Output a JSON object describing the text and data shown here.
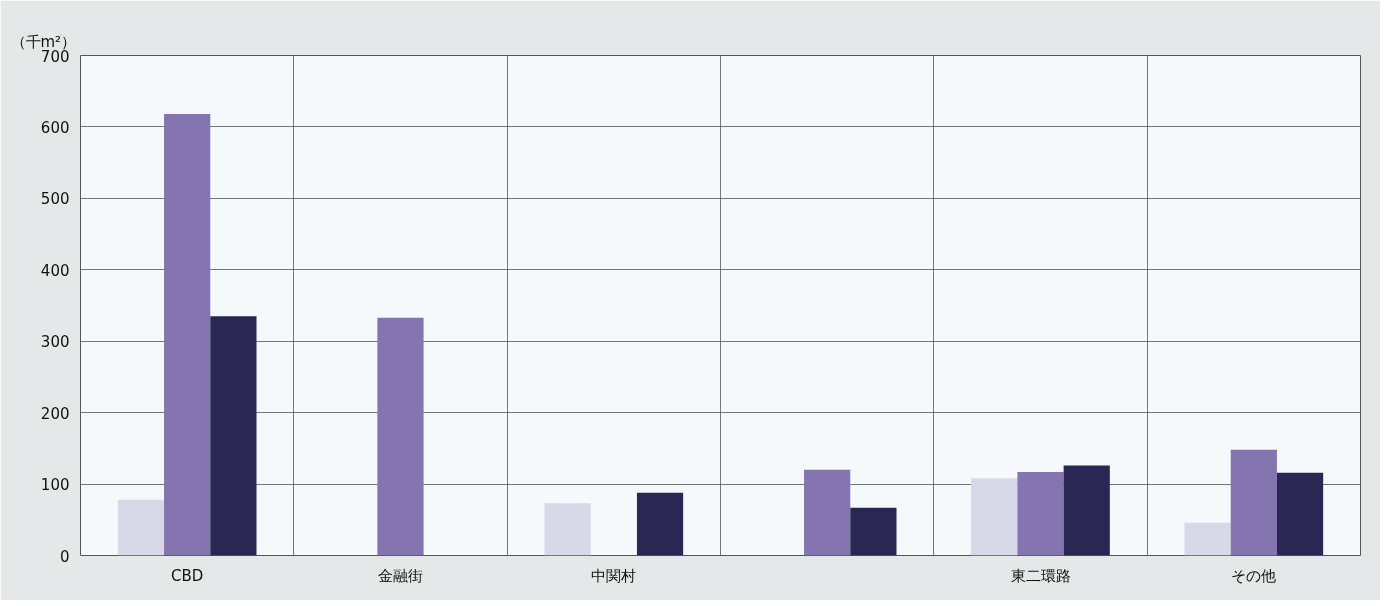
{
  "chart_data": {
    "type": "bar",
    "ylabel": "（千m²）",
    "categories": [
      "CBD",
      "金融街",
      "中関村",
      null,
      "東二環路",
      "その他"
    ],
    "series": [
      {
        "color": "#d9d8e8",
        "values": [
          78,
          null,
          73,
          null,
          108,
          46
        ]
      },
      {
        "color": "#8474b0",
        "values": [
          618,
          333,
          null,
          120,
          117,
          148
        ]
      },
      {
        "color": "#2b2755",
        "values": [
          335,
          null,
          88,
          67,
          126,
          116
        ]
      }
    ],
    "ylim": [
      0,
      700
    ],
    "yticks": [
      0,
      100,
      200,
      300,
      400,
      500,
      600,
      700
    ],
    "grid": true
  }
}
